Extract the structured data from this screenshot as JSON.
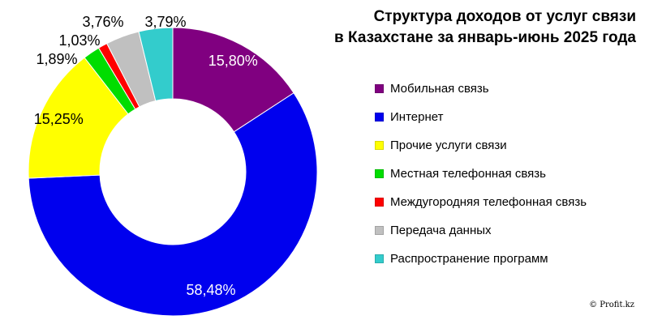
{
  "chart_data": {
    "type": "pie",
    "title": "Структура доходов от услуг связи\nв Казахстане за январь-июнь 2025 года",
    "title_lines": [
      "Структура доходов от услуг связи",
      "в Казахстане за январь-июнь 2025 года"
    ],
    "donut": true,
    "slices": [
      {
        "name": "Мобильная связь",
        "value": 15.8,
        "label": "15,80%",
        "color": "#800080"
      },
      {
        "name": "Интернет",
        "value": 58.48,
        "label": "58,48%",
        "color": "#0000EE"
      },
      {
        "name": "Прочие услуги связи",
        "value": 15.25,
        "label": "15,25%",
        "color": "#FFFF00"
      },
      {
        "name": "Местная телефонная связь",
        "value": 1.89,
        "label": "1,89%",
        "color": "#00DD00"
      },
      {
        "name": "Междугородняя телефонная связь",
        "value": 1.03,
        "label": "1,03%",
        "color": "#FF0000"
      },
      {
        "name": "Передача данных",
        "value": 3.76,
        "label": "3,76%",
        "color": "#C0C0C0"
      },
      {
        "name": "Распространение программ",
        "value": 3.79,
        "label": "3,79%",
        "color": "#33CCCC"
      }
    ],
    "legend_position": "right"
  },
  "credit": "© Profit.kz"
}
